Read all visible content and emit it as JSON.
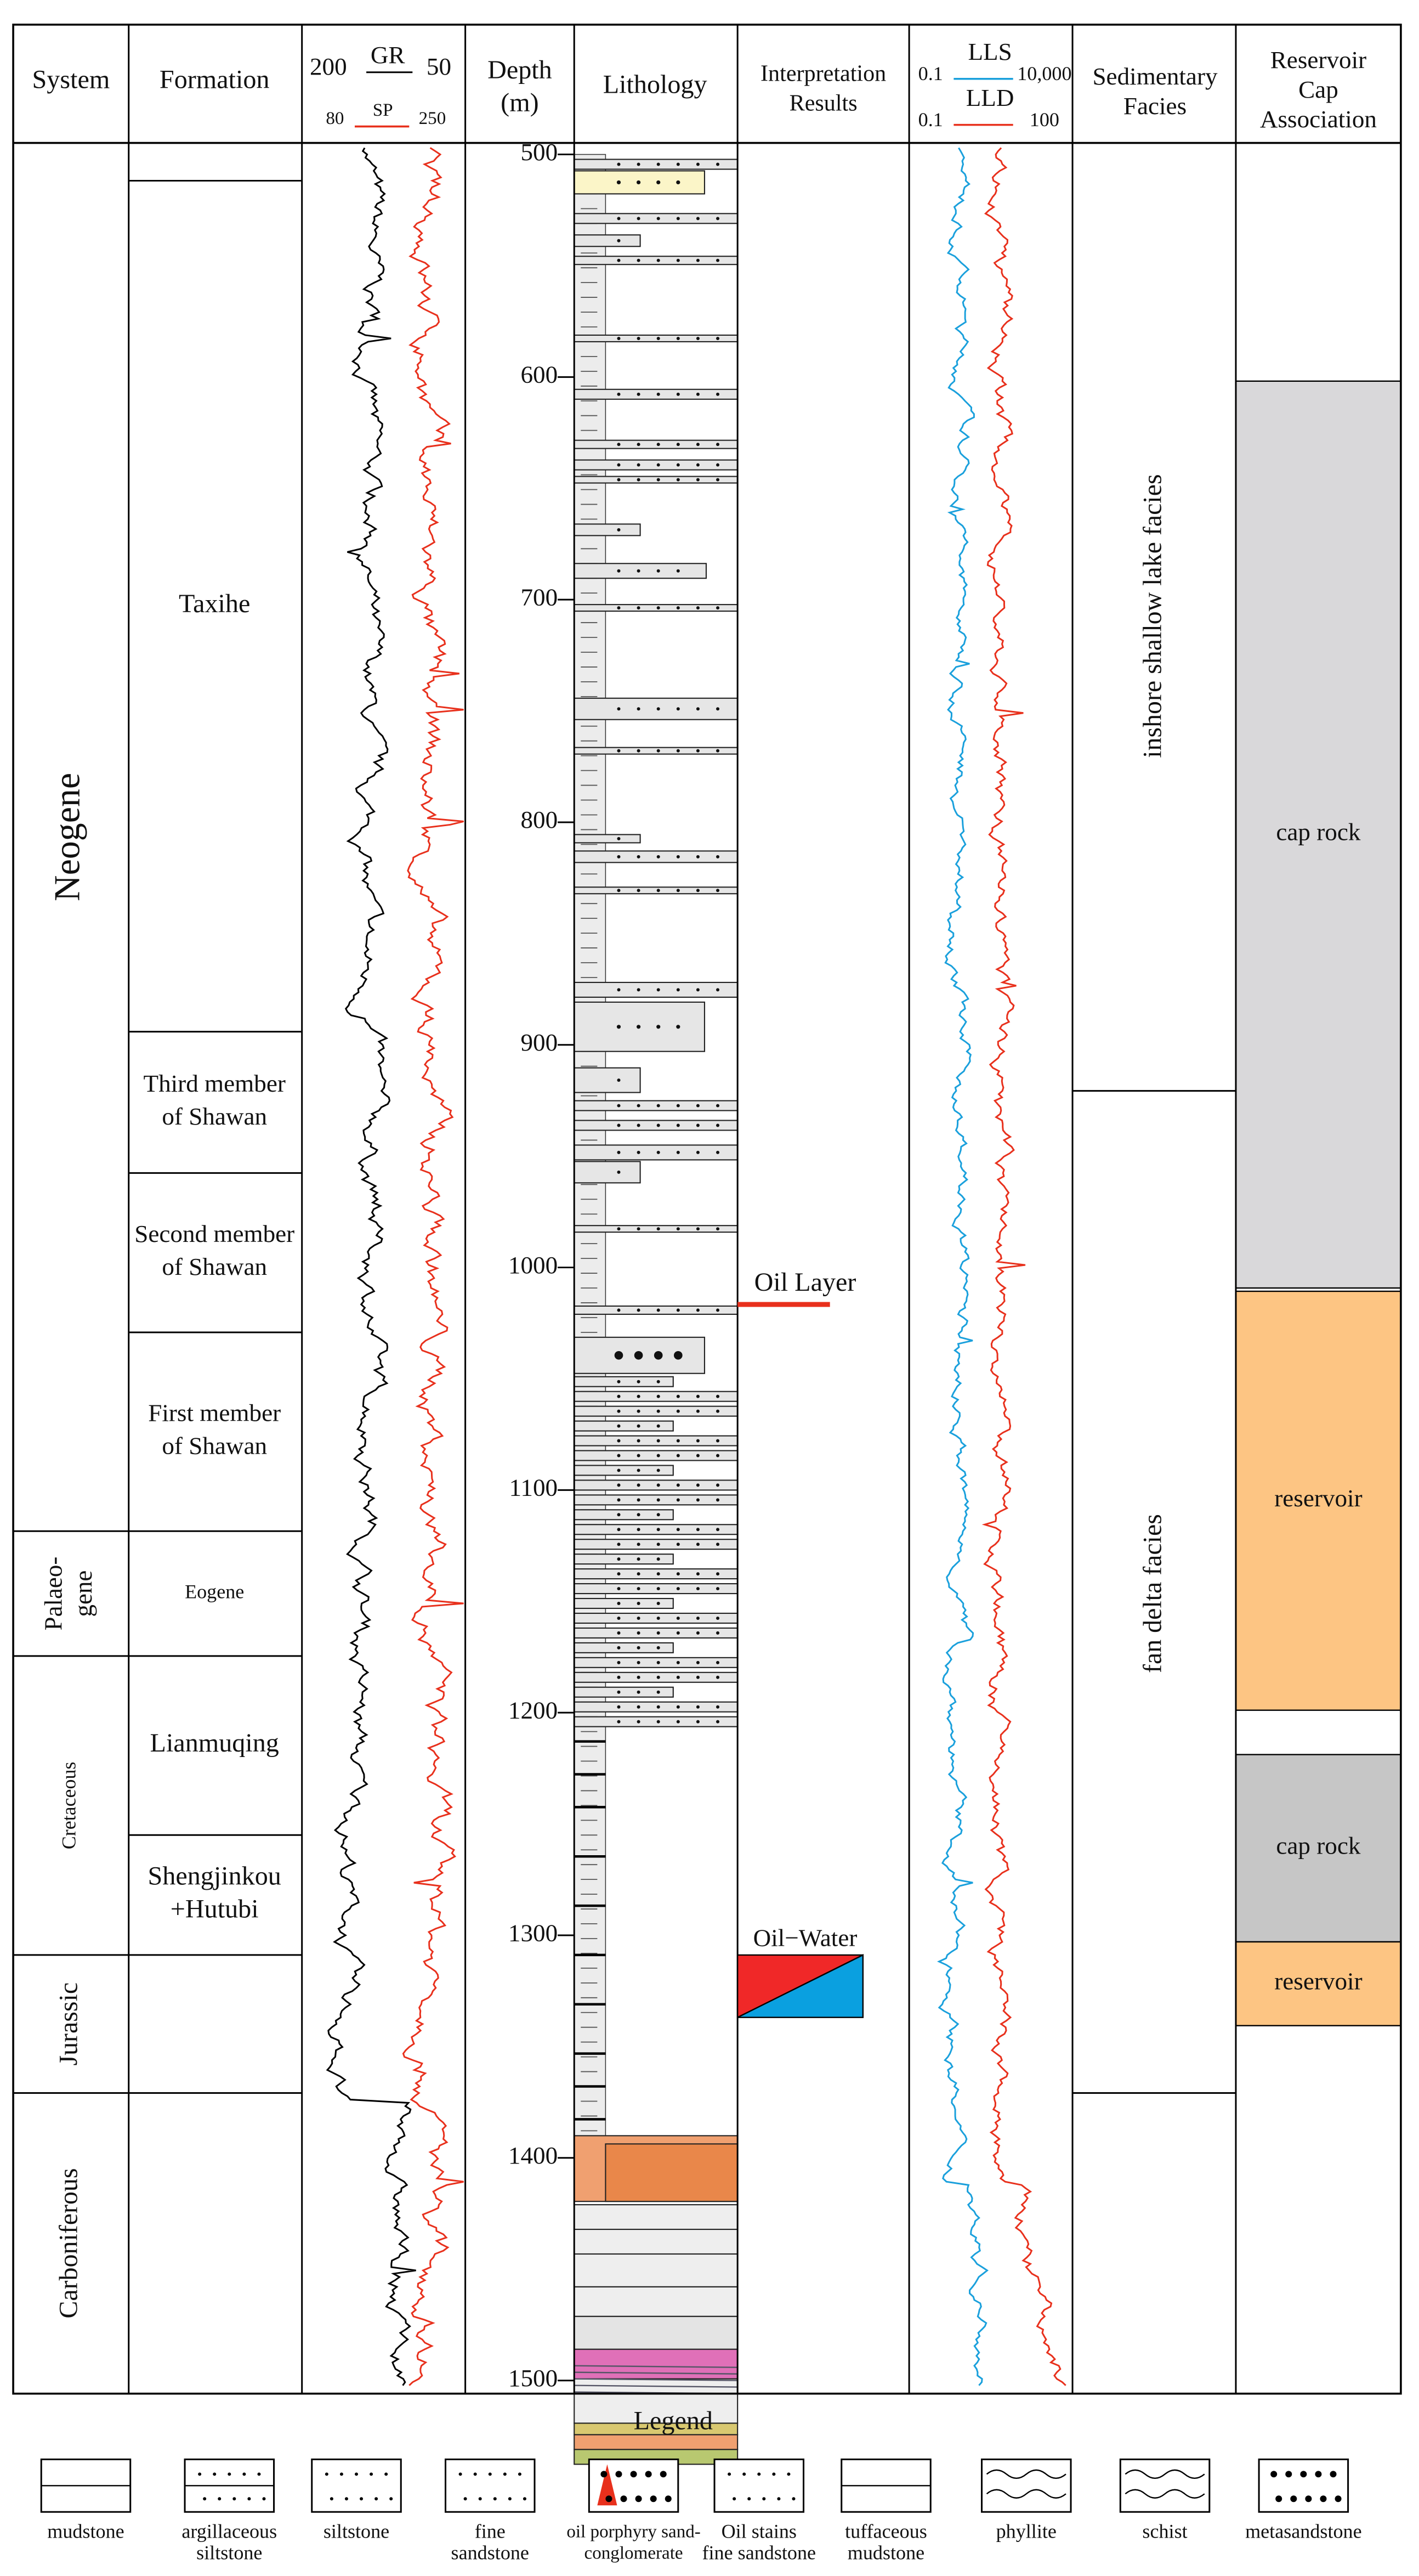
{
  "header": {
    "system": "System",
    "formation": "Formation",
    "gr_left": "200",
    "gr": "GR",
    "gr_right": "50",
    "sp_left": "80",
    "sp": "SP",
    "sp_right": "250",
    "depth": [
      "Depth",
      "(m)"
    ],
    "lithology": "Lithology",
    "interpretation": [
      "Interpretation",
      "Results"
    ],
    "lls_left": "0.1",
    "lls": "LLS",
    "lls_right": "10,000",
    "lld_left": "0.1",
    "lld": "LLD",
    "lld_right": "100",
    "facies": [
      "Sedimentary",
      "Facies"
    ],
    "association": [
      "Reservoir",
      "Cap",
      "Association"
    ]
  },
  "systems": [
    [
      "Neogene"
    ],
    [
      "Palaeo-",
      "gene"
    ],
    [
      "Cretaceous"
    ],
    [
      "Jurassic"
    ],
    [
      "Carboniferous"
    ]
  ],
  "formations": [
    [
      "Taxihe"
    ],
    [
      "Third member",
      "of Shawan"
    ],
    [
      "Second member",
      "of Shawan"
    ],
    [
      "First member",
      "of Shawan"
    ],
    [
      "Eogene"
    ],
    [
      "Lianmuqing"
    ],
    [
      "Shengjinkou",
      "+Hutubi"
    ]
  ],
  "depth_ticks": [
    500,
    600,
    700,
    800,
    900,
    1000,
    1100,
    1200,
    1300,
    1400,
    1500
  ],
  "interpretation": {
    "oil_layer": "Oil Layer",
    "oil_water": "Oil−Water"
  },
  "facies": [
    "inshore shallow lake facies",
    "fan delta facies"
  ],
  "association": [
    "cap rock",
    "reservoir",
    "cap rock",
    "reservoir"
  ],
  "legend": {
    "title": "Legend",
    "items": [
      [
        "mudstone"
      ],
      [
        "argillaceous",
        "siltstone"
      ],
      [
        "siltstone"
      ],
      [
        "fine",
        "sandstone"
      ],
      [
        "oil porphyry sand-",
        "conglomerate"
      ],
      [
        "Oil stains",
        "fine sandstone"
      ],
      [
        "tuffaceous",
        "mudstone"
      ],
      [
        "phyllite"
      ],
      [
        "schist"
      ],
      [
        "metasandstone"
      ]
    ]
  }
}
